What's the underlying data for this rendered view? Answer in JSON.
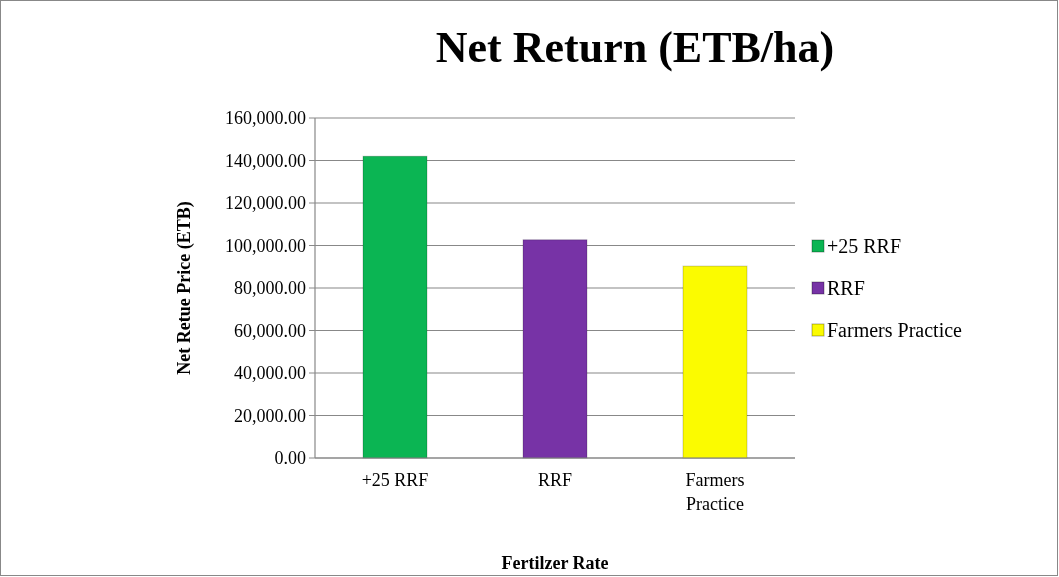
{
  "chart_data": {
    "type": "bar",
    "title": "Net Return (ETB/ha)",
    "xlabel": "Fertilzer Rate",
    "ylabel": "Net Retue Price (ETB)",
    "categories": [
      "+25 RRF",
      "RRF",
      "Farmers Practice"
    ],
    "stacked": true,
    "series": [
      {
        "name": "+25 RRF",
        "color": "#0bb553",
        "values": [
          142000,
          null,
          null
        ]
      },
      {
        "name": "RRF",
        "color": "#7733a6",
        "values": [
          null,
          102700,
          null
        ]
      },
      {
        "name": "Farmers Practice",
        "color": "#fbfb00",
        "values": [
          null,
          null,
          90300
        ]
      }
    ],
    "ylim": [
      0,
      160000
    ],
    "yticks": [
      {
        "value": 0,
        "label": "0.00"
      },
      {
        "value": 20000,
        "label": "20,000.00"
      },
      {
        "value": 40000,
        "label": "40,000.00"
      },
      {
        "value": 60000,
        "label": "60,000.00"
      },
      {
        "value": 80000,
        "label": "80,000.00"
      },
      {
        "value": 100000,
        "label": "100,000.00"
      },
      {
        "value": 120000,
        "label": "120,000.00"
      },
      {
        "value": 140000,
        "label": "140,000.00"
      },
      {
        "value": 160000,
        "label": "160,000.00"
      }
    ],
    "grid": "y",
    "legend": "right"
  }
}
